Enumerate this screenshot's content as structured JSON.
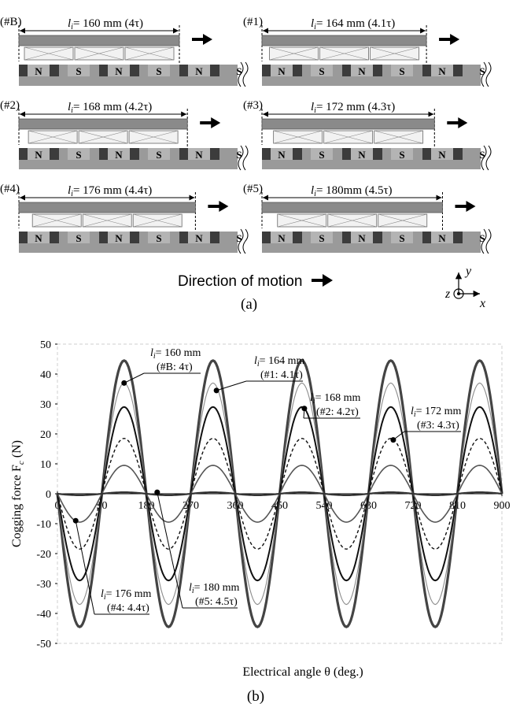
{
  "panel_a": {
    "configs": [
      {
        "id": "(#B)",
        "length_text": "= 160 mm (4τ)"
      },
      {
        "id": "(#1)",
        "length_text": "= 164 mm (4.1τ)"
      },
      {
        "id": "(#2)",
        "length_text": "= 168 mm (4.2τ)"
      },
      {
        "id": "(#3)",
        "length_text": "= 172 mm (4.3τ)"
      },
      {
        "id": "(#4)",
        "length_text": "= 176 mm (4.4τ)"
      },
      {
        "id": "(#5)",
        "length_text": "= 180mm (4.5τ)"
      }
    ],
    "length_symbol": "l",
    "length_subscript": "i",
    "pole_labels": [
      "N",
      "S",
      "N",
      "S",
      "N",
      "S"
    ],
    "motion_text": "Direction of motion",
    "axis_y": "y",
    "axis_x": "x",
    "axis_z": "z",
    "caption": "(a)"
  },
  "chart_data": {
    "type": "line",
    "xlabel": "Electrical angle θ (deg.)",
    "ylabel": "Cogging force F",
    "ylabel_sub": "c",
    "ylabel_unit": " (N)",
    "xlim": [
      0,
      900
    ],
    "ylim": [
      -50,
      50
    ],
    "xticks": [
      0,
      90,
      180,
      270,
      360,
      450,
      540,
      630,
      720,
      810,
      900
    ],
    "yticks": [
      50,
      40,
      30,
      20,
      10,
      0,
      -10,
      -20,
      -30,
      -40,
      -50
    ],
    "series": [
      {
        "name": "#B",
        "amplitude": 44.5,
        "style": "thick-dark"
      },
      {
        "name": "#1",
        "amplitude": 37,
        "style": "thin-gray"
      },
      {
        "name": "#2",
        "amplitude": 29,
        "style": "medium-dark"
      },
      {
        "name": "#3",
        "amplitude": 18.5,
        "style": "dashed"
      },
      {
        "name": "#4",
        "amplitude": 9.5,
        "style": "medium-gray"
      },
      {
        "name": "#5",
        "amplitude": 0.5,
        "style": "flat-dark"
      }
    ],
    "annotations": [
      {
        "line1": "= 160 mm",
        "line2": "(#B: 4τ)"
      },
      {
        "line1": "= 164 mm",
        "line2": "(#1: 4.1τ)"
      },
      {
        "line1": "= 168 mm",
        "line2": "(#2: 4.2τ)"
      },
      {
        "line1": "= 172 mm",
        "line2": "(#3: 4.3τ)"
      },
      {
        "line1": "= 176 mm",
        "line2": "(#4: 4.4τ)"
      },
      {
        "line1": "= 180 mm",
        "line2": "(#5: 4.5τ)"
      }
    ],
    "caption": "(b)"
  }
}
